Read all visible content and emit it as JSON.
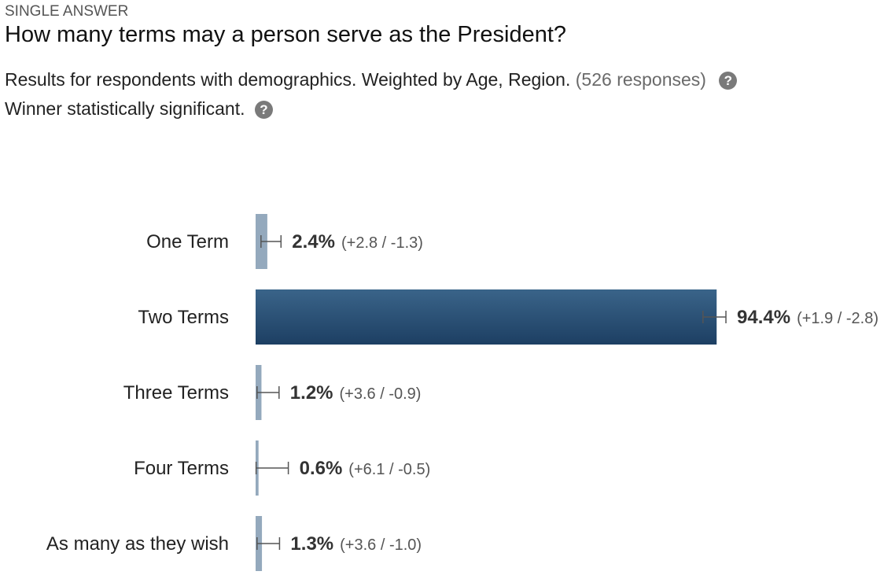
{
  "header": {
    "question_type": "SINGLE ANSWER",
    "question": "How many terms may a person serve as the President?",
    "results_text": "Results for respondents with demographics. Weighted by Age, Region.",
    "responses_text": "(526 responses)",
    "significance_text": "Winner statistically significant."
  },
  "icons": {
    "help": "question-mark-circle-icon",
    "help_glyph": "?"
  },
  "colors": {
    "winner_bar_top": "#3a6489",
    "winner_bar_bottom": "#1d3f63",
    "other_bar": "#94a9bd",
    "error_bar": "#555555"
  },
  "chart_data": {
    "type": "bar",
    "orientation": "horizontal",
    "categories": [
      "One Term",
      "Two Terms",
      "Three Terms",
      "Four Terms",
      "As many as they wish"
    ],
    "values": [
      2.4,
      94.4,
      1.2,
      0.6,
      1.3
    ],
    "value_labels": [
      "2.4%",
      "94.4%",
      "1.2%",
      "0.6%",
      "1.3%"
    ],
    "error_plus": [
      2.8,
      1.9,
      3.6,
      6.1,
      3.6
    ],
    "error_minus": [
      1.3,
      2.8,
      0.9,
      0.5,
      1.0
    ],
    "error_labels": [
      "(+2.8 / -1.3)",
      "(+1.9 / -2.8)",
      "(+3.6 / -0.9)",
      "(+6.1 / -0.5)",
      "(+3.6 / -1.0)"
    ],
    "winner_index": 1,
    "xlim": [
      0,
      100
    ],
    "grid": false,
    "legend": "none"
  }
}
